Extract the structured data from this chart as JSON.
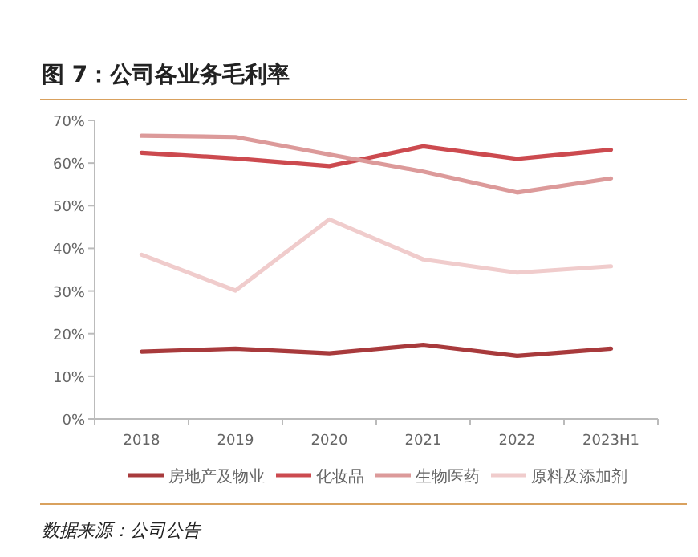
{
  "chart_data": {
    "type": "line",
    "title": "图 7：公司各业务毛利率",
    "annotations": [
      "数据来源：公司公告"
    ],
    "categories": [
      "2018",
      "2019",
      "2020",
      "2021",
      "2022",
      "2023H1"
    ],
    "ylim": [
      0,
      70
    ],
    "yticks": [
      {
        "value": 0,
        "label": "0%"
      },
      {
        "value": 10,
        "label": "10%"
      },
      {
        "value": 20,
        "label": "20%"
      },
      {
        "value": 30,
        "label": "30%"
      },
      {
        "value": 40,
        "label": "40%"
      },
      {
        "value": 50,
        "label": "50%"
      },
      {
        "value": 60,
        "label": "60%"
      },
      {
        "value": 70,
        "label": "70%"
      }
    ],
    "grid": false,
    "legend": "bottom",
    "marker": "none",
    "line_style": "solid",
    "series": [
      {
        "name": "房地产及物业",
        "color": "#a83a3c",
        "values": [
          15.8,
          16.5,
          15.4,
          17.4,
          14.8,
          16.5
        ]
      },
      {
        "name": "化妆品",
        "color": "#cc4a4f",
        "values": [
          62.4,
          61.1,
          59.3,
          63.9,
          61,
          63.1
        ]
      },
      {
        "name": "生物医药",
        "color": "#dc9a9a",
        "values": [
          66.4,
          66.1,
          62,
          58,
          53.1,
          56.4
        ]
      },
      {
        "name": "原料及添加剂",
        "color": "#f0cccc",
        "values": [
          38.5,
          30.1,
          46.8,
          37.4,
          34.3,
          35.8
        ]
      }
    ]
  }
}
